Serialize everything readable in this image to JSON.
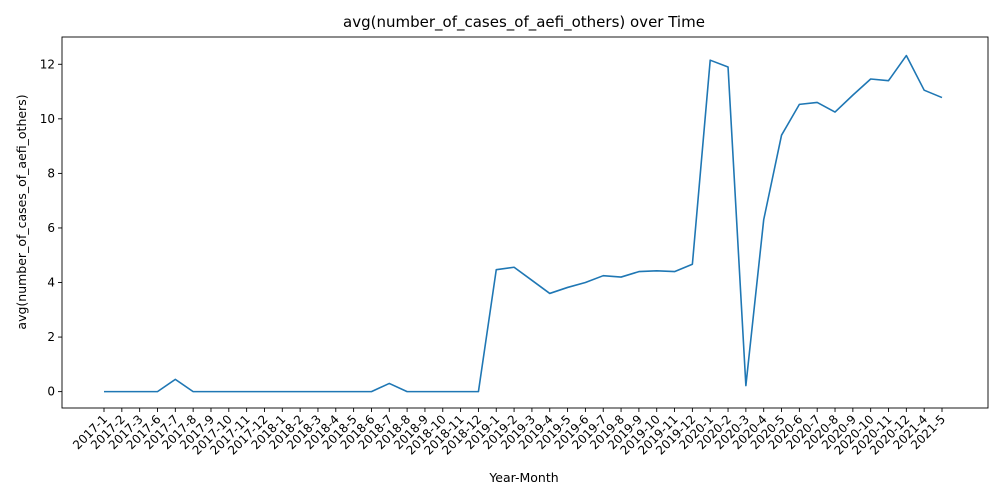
{
  "chart_data": {
    "type": "line",
    "title": "avg(number_of_cases_of_aefi_others) over Time",
    "xlabel": "Year-Month",
    "ylabel": "avg(number_of_cases_of_aefi_others)",
    "ylim": [
      -0.6,
      13.0
    ],
    "yticks": [
      0,
      2,
      4,
      6,
      8,
      10,
      12
    ],
    "grid": false,
    "line_color": "#1f77b4",
    "categories": [
      "2017-1",
      "2017-2",
      "2017-3",
      "2017-6",
      "2017-7",
      "2017-8",
      "2017-9",
      "2017-10",
      "2017-11",
      "2017-12",
      "2018-1",
      "2018-2",
      "2018-3",
      "2018-4",
      "2018-5",
      "2018-6",
      "2018-7",
      "2018-8",
      "2018-9",
      "2018-10",
      "2018-11",
      "2018-12",
      "2019-1",
      "2019-2",
      "2019-3",
      "2019-4",
      "2019-5",
      "2019-6",
      "2019-7",
      "2019-8",
      "2019-9",
      "2019-10",
      "2019-11",
      "2019-12",
      "2020-1",
      "2020-2",
      "2020-3",
      "2020-4",
      "2020-5",
      "2020-6",
      "2020-7",
      "2020-8",
      "2020-9",
      "2020-10",
      "2020-11",
      "2020-12",
      "2021-4",
      "2021-5"
    ],
    "values": [
      0.0,
      0.0,
      0.0,
      0.0,
      0.45,
      0.0,
      0.0,
      0.0,
      0.0,
      0.0,
      0.0,
      0.0,
      0.0,
      0.0,
      0.0,
      0.0,
      0.3,
      0.0,
      0.0,
      0.0,
      0.0,
      0.0,
      4.47,
      4.56,
      4.08,
      3.6,
      3.82,
      4.0,
      4.25,
      4.2,
      4.4,
      4.43,
      4.4,
      4.67,
      12.15,
      11.9,
      0.22,
      6.3,
      9.4,
      10.53,
      10.6,
      10.25,
      10.87,
      11.46,
      11.4,
      12.32,
      11.05,
      10.78
    ]
  }
}
